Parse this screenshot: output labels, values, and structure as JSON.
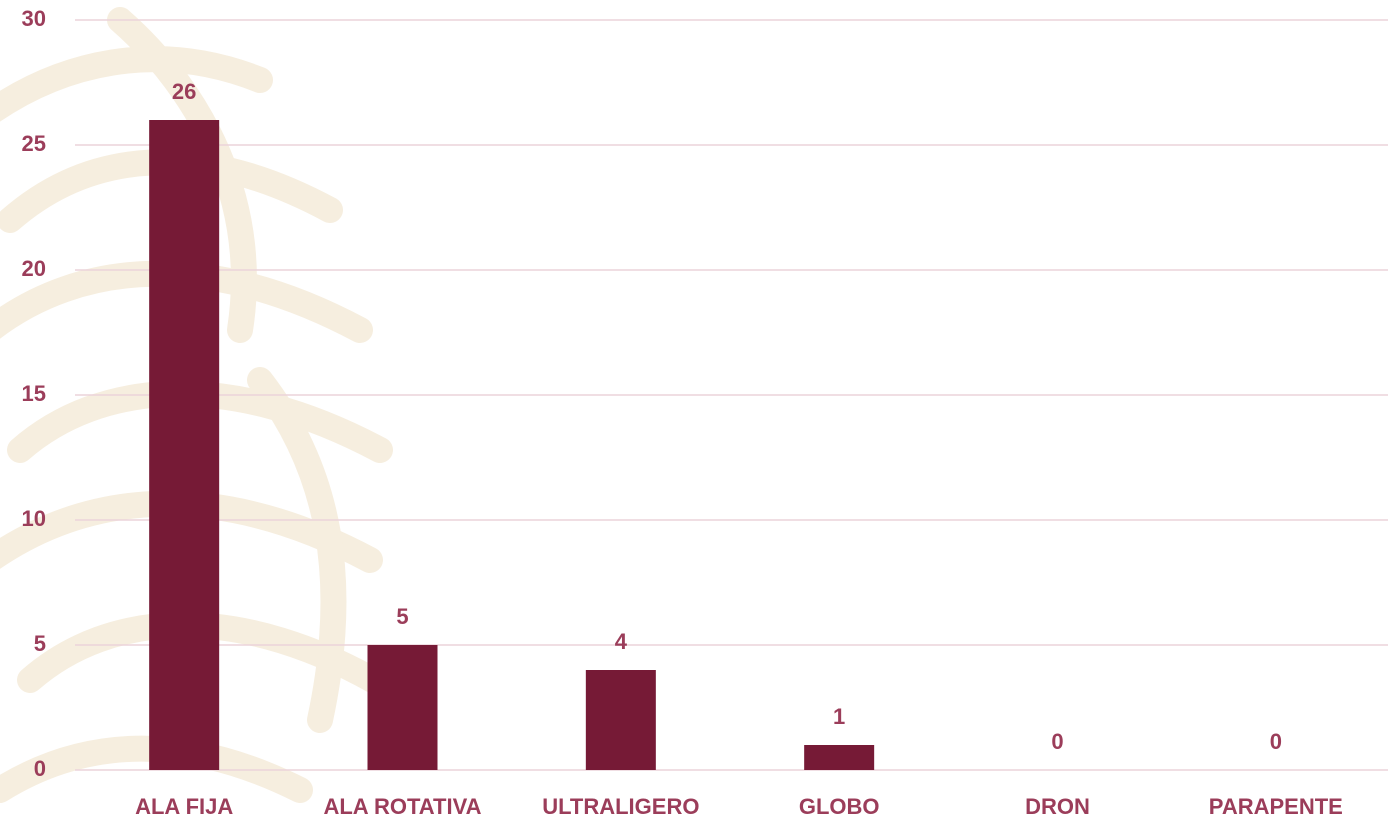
{
  "chart_data": {
    "type": "bar",
    "categories": [
      "ALA FIJA",
      "ALA ROTATIVA",
      "ULTRALIGERO",
      "GLOBO",
      "DRON",
      "PARAPENTE"
    ],
    "values": [
      26,
      5,
      4,
      1,
      0,
      0
    ],
    "color": "#761a36",
    "ylim": [
      0,
      30
    ],
    "yticks": [
      0,
      5,
      10,
      15,
      20,
      25,
      30
    ],
    "grid": true
  }
}
